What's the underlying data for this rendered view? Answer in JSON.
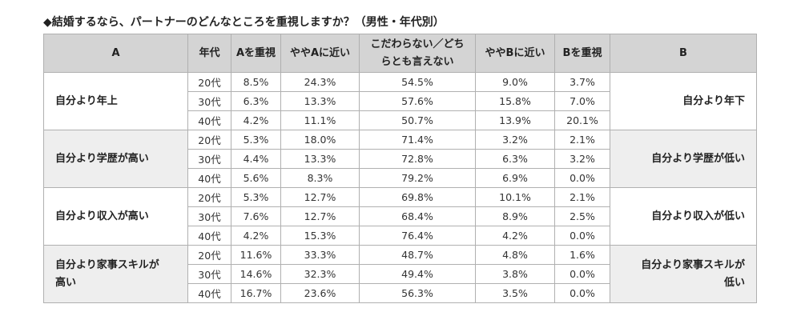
{
  "title": "◆結婚するなら、パートナーのどんなところを重視しますか？（男性・年代別）",
  "headers": {
    "a": "A",
    "age": "年代",
    "a_important": "Aを重視",
    "near_a": "ややAに近い",
    "neutral_line1": "こだわらない／どち",
    "neutral_line2": "らとも言えない",
    "near_b": "ややBに近い",
    "b_important": "Bを重視",
    "b": "B"
  },
  "groups": [
    {
      "a_label": "自分より年上",
      "b_label": "自分より年下",
      "rows": [
        {
          "age": "20代",
          "v": [
            "8.5%",
            "24.3%",
            "54.5%",
            "9.0%",
            "3.7%"
          ]
        },
        {
          "age": "30代",
          "v": [
            "6.3%",
            "13.3%",
            "57.6%",
            "15.8%",
            "7.0%"
          ]
        },
        {
          "age": "40代",
          "v": [
            "4.2%",
            "11.1%",
            "50.7%",
            "13.9%",
            "20.1%"
          ]
        }
      ]
    },
    {
      "a_label": "自分より学歴が高い",
      "b_label": "自分より学歴が低い",
      "rows": [
        {
          "age": "20代",
          "v": [
            "5.3%",
            "18.0%",
            "71.4%",
            "3.2%",
            "2.1%"
          ]
        },
        {
          "age": "30代",
          "v": [
            "4.4%",
            "13.3%",
            "72.8%",
            "6.3%",
            "3.2%"
          ]
        },
        {
          "age": "40代",
          "v": [
            "5.6%",
            "8.3%",
            "79.2%",
            "6.9%",
            "0.0%"
          ]
        }
      ]
    },
    {
      "a_label": "自分より収入が高い",
      "b_label": "自分より収入が低い",
      "rows": [
        {
          "age": "20代",
          "v": [
            "5.3%",
            "12.7%",
            "69.8%",
            "10.1%",
            "2.1%"
          ]
        },
        {
          "age": "30代",
          "v": [
            "7.6%",
            "12.7%",
            "68.4%",
            "8.9%",
            "2.5%"
          ]
        },
        {
          "age": "40代",
          "v": [
            "4.2%",
            "15.3%",
            "76.4%",
            "4.2%",
            "0.0%"
          ]
        }
      ]
    },
    {
      "a_label_line1": "自分より家事スキルが",
      "a_label_line2": "高い",
      "b_label_line1": "自分より家事スキルが",
      "b_label_line2": "低い",
      "rows": [
        {
          "age": "20代",
          "v": [
            "11.6%",
            "33.3%",
            "48.7%",
            "4.8%",
            "1.6%"
          ]
        },
        {
          "age": "30代",
          "v": [
            "14.6%",
            "32.3%",
            "49.4%",
            "3.8%",
            "0.0%"
          ]
        },
        {
          "age": "40代",
          "v": [
            "16.7%",
            "23.6%",
            "56.3%",
            "3.5%",
            "0.0%"
          ]
        }
      ]
    }
  ]
}
